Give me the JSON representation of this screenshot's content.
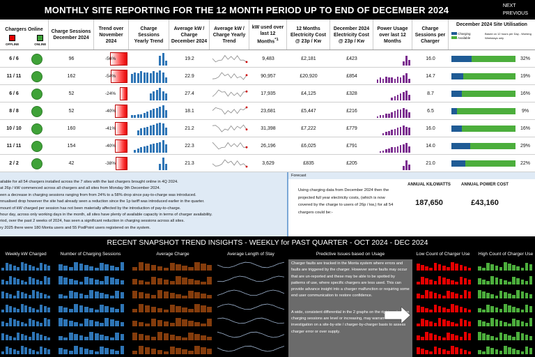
{
  "header": {
    "title": "MONTHLY SITE REPORTING  FOR THE 12 MONTH PERIOD UP TO END OF  DECEMBER 2024",
    "next_label": "NEXT",
    "previous_label": "PREVIOUS"
  },
  "columns": {
    "chargers_online": "Chargers Online",
    "offline": "OFFLINE",
    "online": "ONLINE",
    "charge_sessions": "Charge Sessions December 2024",
    "trend": "Trend over November 2024",
    "yearly_trend": "Charge Sessions Yearly Trend",
    "avg_kw": "Average kW / Charge December 2024",
    "avg_kw_trend": "Average kW / Charge Yearly Trend",
    "kw_used": "kW used over last 12 Months",
    "kw_used_sup": "*1",
    "elec_cost": "12 Months Electricity Cost @ 23p / Kw",
    "dec_cost": "December 2024 Electricity Cost @ 23p / Kw",
    "power_usage": "Power Usage over last 12 Months",
    "per_charger": "Charge Sessions per Charger",
    "utilisation_title": "December 2024 Site Utilisation",
    "legend_charging": "Charging",
    "legend_available": "Available",
    "utilisation_note": "Based on 12 hours per Day - Working Weekdays only"
  },
  "colors": {
    "online_green": "#3fa238",
    "offline_red": "#e60000",
    "util_blue": "#1f5b95",
    "util_green": "#4cae3c",
    "spark_blue": "#2e75b6",
    "spark_purple": "#7b2c8f",
    "snap_brown": "#843c0c",
    "snap_red": "#e60000",
    "snap_green": "#4cae3c"
  },
  "rows": [
    {
      "chargers": "6 / 6",
      "sessions": "96",
      "trend": "-56%",
      "trend_fill": 0.56,
      "avg_kw": "19.2",
      "kw_used": "9,483",
      "cost12": "£2,181",
      "cost_dec": "£423",
      "per_charger": "16.0",
      "util": "32%",
      "util_frac": 0.32,
      "spark_sessions": [
        0,
        0,
        0,
        0,
        0,
        0,
        0,
        0,
        0,
        8,
        10,
        4
      ],
      "spark_power": [
        0,
        0,
        0,
        0,
        0,
        0,
        0,
        0,
        0,
        3,
        7,
        4
      ]
    },
    {
      "chargers": "11 / 11",
      "sessions": "162",
      "trend": "-54%",
      "trend_fill": 0.54,
      "avg_kw": "22.9",
      "kw_used": "90,957",
      "cost12": "£20,920",
      "cost_dec": "£854",
      "per_charger": "14.7",
      "util": "19%",
      "util_frac": 0.19,
      "spark_sessions": [
        10,
        12,
        11,
        13,
        12,
        12,
        11,
        13,
        12,
        14,
        12,
        6
      ],
      "spark_power": [
        3,
        5,
        4,
        6,
        5,
        5,
        4,
        6,
        5,
        7,
        9,
        4
      ]
    },
    {
      "chargers": "6 / 6",
      "sessions": "52",
      "trend": "-24%",
      "trend_fill": 0.24,
      "avg_kw": "27.4",
      "kw_used": "17,935",
      "cost12": "£4,125",
      "cost_dec": "£328",
      "per_charger": "8.7",
      "util": "16%",
      "util_frac": 0.16,
      "spark_sessions": [
        0,
        0,
        0,
        0,
        0,
        0,
        4,
        5,
        6,
        7,
        5,
        4
      ],
      "spark_power": [
        0,
        0,
        0,
        0,
        0,
        2,
        3,
        4,
        5,
        6,
        7,
        4
      ]
    },
    {
      "chargers": "8 / 8",
      "sessions": "52",
      "trend": "-40%",
      "trend_fill": 0.4,
      "avg_kw": "18.1",
      "kw_used": "23,681",
      "cost12": "£5,447",
      "cost_dec": "£216",
      "per_charger": "6.5",
      "util": "9%",
      "util_frac": 0.09,
      "spark_sessions": [
        2,
        2,
        3,
        3,
        4,
        5,
        6,
        7,
        8,
        9,
        10,
        6
      ],
      "spark_power": [
        1,
        2,
        2,
        3,
        3,
        4,
        5,
        6,
        6,
        7,
        6,
        4
      ]
    },
    {
      "chargers": "10 / 10",
      "sessions": "160",
      "trend": "-41%",
      "trend_fill": 0.41,
      "avg_kw": "21.2",
      "kw_used": "31,398",
      "cost12": "£7,222",
      "cost_dec": "£779",
      "per_charger": "16.0",
      "util": "16%",
      "util_frac": 0.16,
      "spark_sessions": [
        0,
        0,
        5,
        7,
        8,
        9,
        10,
        11,
        12,
        13,
        12,
        8
      ],
      "spark_power": [
        0,
        0,
        2,
        3,
        4,
        5,
        6,
        7,
        8,
        9,
        8,
        7
      ]
    },
    {
      "chargers": "11 / 11",
      "sessions": "154",
      "trend": "-40%",
      "trend_fill": 0.4,
      "avg_kw": "22.3",
      "kw_used": "26,196",
      "cost12": "£6,025",
      "cost_dec": "£791",
      "per_charger": "14.0",
      "util": "29%",
      "util_frac": 0.29,
      "spark_sessions": [
        0,
        3,
        5,
        6,
        7,
        8,
        9,
        10,
        11,
        12,
        14,
        9
      ],
      "spark_power": [
        0,
        1,
        2,
        3,
        4,
        5,
        5,
        6,
        7,
        8,
        9,
        6
      ]
    },
    {
      "chargers": "2 / 2",
      "sessions": "42",
      "trend": "-38%",
      "trend_fill": 0.38,
      "avg_kw": "21.3",
      "kw_used": "3,629",
      "cost12": "£835",
      "cost_dec": "£205",
      "per_charger": "21.0",
      "util": "22%",
      "util_frac": 0.22,
      "spark_sessions": [
        0,
        0,
        0,
        0,
        0,
        0,
        0,
        0,
        0,
        3,
        6,
        3
      ],
      "spark_power": [
        0,
        0,
        0,
        0,
        0,
        0,
        0,
        0,
        0,
        2,
        5,
        3
      ]
    }
  ],
  "commentary": [
    "ailable for all 54 chargers installed across the 7 sites with the last chargers brought online in 4Q 2024.",
    "at 26p / kW commenced across all chargers and all sites from Monday 9th December 2024.",
    "een a decrease in charging sessions ranging from from 24% to a 58% drop since pay-to-charge was introduced.",
    "nnualised drop however the site had already seen a reduction since the 1p tariff was introduced earlier in the quarter.",
    "mount of kW charged per session has not been materially affected by the introduction of pay-to-charge.",
    "hour day, across only working days in the month, all sites have plenty of available capacity in terms of charger availability.",
    "riod, over the past 2 weeks of 2024, has seen a significant reduction in charging sessions across all sites.",
    "ry 2025 there were 180 Monta users and 55 PodPoint users registered on the system."
  ],
  "forecast": {
    "header": "Forecast",
    "text": "Using charging data from December 2024 then the projected full year electricity costs, (which is now covered by the charge to users of 26p / kw,) for all 54 chargers could be:-",
    "kw_label": "ANNUAL KILOWATTS",
    "kw_value": "187,650",
    "cost_label": "ANNUAL POWER COST",
    "cost_value": "£43,160"
  },
  "snapshot": {
    "title": "RECENT SNAPSHOT TREND INSIGHTS - WEEKLY for PAST QUARTER - OCT 2024 - DEC 2024",
    "col_weekly_kw": "Weekly kW Charged",
    "col_sessions": "Number of Charging Sessions",
    "col_avg_charge": "Average Charge",
    "col_stay": "Average Length of Stay",
    "col_predictive": "Predictive Issues based on Usage",
    "col_low": "Low Count of Charger Use",
    "col_high": "High Count of Charger Use",
    "predictive_text_1": "Charger faults are tracked in the Monta system where errors and faults are triggered by the charger.  However some faults may occur that are un-reported and these may be able to be spotted by patterns of use, where specific chargers are less used.  This can provide advance insight into a charger malfunction or requiring some end user communication to restore confidence.",
    "predictive_text_2": "A wide, consistent differential in the 2 graphs on the right, and where charging sessions are level or increasing, may warrant further investigation on a site-by-site / charger-by-charger basis to assess charger error or over supply."
  }
}
